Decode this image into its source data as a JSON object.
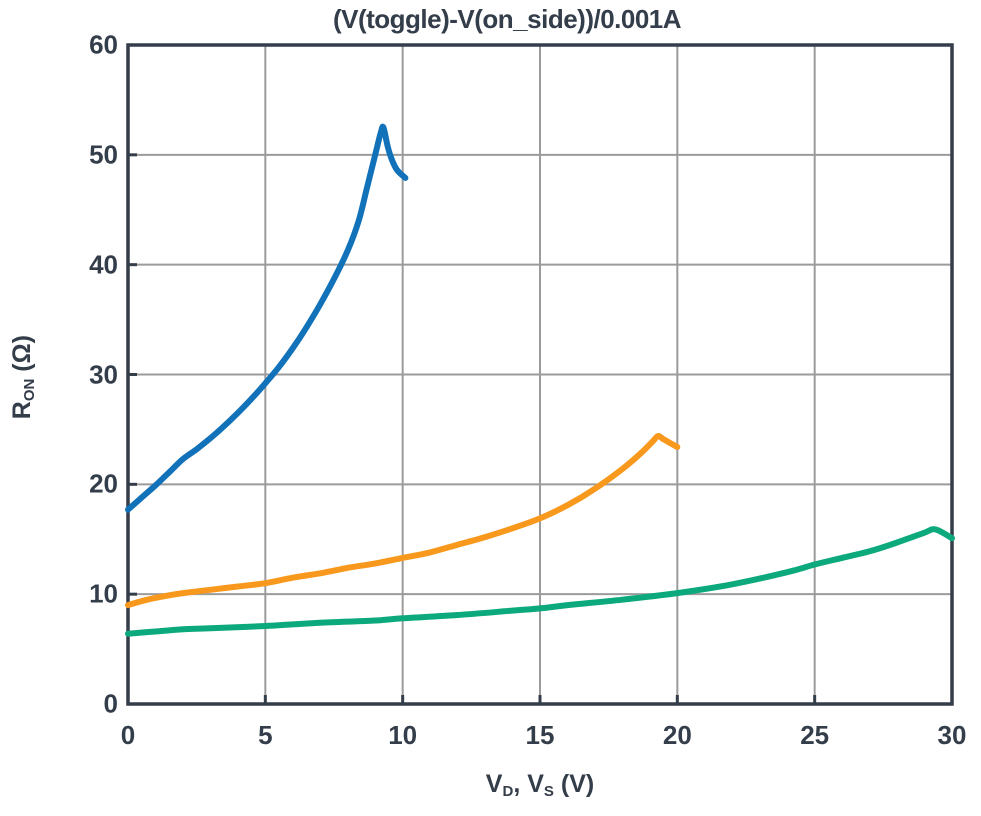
{
  "chart_data": {
    "type": "line",
    "title": "(V(toggle)-V(on_side))/0.001A",
    "xlabel": "V_D, V_S (V)",
    "ylabel": "R_ON (Ω)",
    "xlabel_parts": [
      {
        "text": "V"
      },
      {
        "text": "D",
        "sub": true
      },
      {
        "text": ", V"
      },
      {
        "text": "S",
        "sub": true
      },
      {
        "text": " (V)"
      }
    ],
    "ylabel_parts": [
      {
        "text": "R"
      },
      {
        "text": "ON",
        "sub": true
      },
      {
        "text": " (Ω)"
      }
    ],
    "xlim": [
      0,
      30
    ],
    "ylim": [
      0,
      60
    ],
    "xticks": [
      0,
      5,
      10,
      15,
      20,
      25,
      30
    ],
    "yticks": [
      0,
      10,
      20,
      30,
      40,
      50,
      60
    ],
    "xtick_labels": [
      "0",
      "5",
      "10",
      "15",
      "20",
      "25",
      "30"
    ],
    "ytick_labels": [
      "0",
      "10",
      "20",
      "30",
      "40",
      "50",
      "60"
    ],
    "grid": true,
    "legend": "none",
    "series": [
      {
        "name": "blue-curve",
        "color": "#1272B9",
        "points": [
          [
            0,
            17.7
          ],
          [
            0.5,
            18.8
          ],
          [
            1,
            19.9
          ],
          [
            1.5,
            21.1
          ],
          [
            2,
            22.3
          ],
          [
            2.5,
            23.2
          ],
          [
            3,
            24.2
          ],
          [
            3.5,
            25.3
          ],
          [
            4,
            26.5
          ],
          [
            4.5,
            27.8
          ],
          [
            5,
            29.2
          ],
          [
            5.5,
            30.7
          ],
          [
            6,
            32.4
          ],
          [
            6.5,
            34.3
          ],
          [
            7,
            36.4
          ],
          [
            7.5,
            38.7
          ],
          [
            8,
            41.3
          ],
          [
            8.4,
            44.0
          ],
          [
            8.7,
            47.0
          ],
          [
            9.0,
            50.0
          ],
          [
            9.2,
            52.0
          ],
          [
            9.3,
            52.5
          ],
          [
            9.45,
            50.8
          ],
          [
            9.6,
            49.6
          ],
          [
            9.8,
            48.6
          ],
          [
            10.1,
            47.9
          ]
        ]
      },
      {
        "name": "orange-curve",
        "color": "#F8991D",
        "points": [
          [
            0,
            9.0
          ],
          [
            0.7,
            9.5
          ],
          [
            1.5,
            9.9
          ],
          [
            2,
            10.1
          ],
          [
            3,
            10.4
          ],
          [
            4,
            10.7
          ],
          [
            5,
            11.0
          ],
          [
            6,
            11.5
          ],
          [
            7,
            11.9
          ],
          [
            8,
            12.4
          ],
          [
            9,
            12.8
          ],
          [
            10,
            13.3
          ],
          [
            11,
            13.8
          ],
          [
            12,
            14.5
          ],
          [
            13,
            15.2
          ],
          [
            14,
            16.0
          ],
          [
            15,
            16.9
          ],
          [
            16,
            18.1
          ],
          [
            17,
            19.6
          ],
          [
            18,
            21.4
          ],
          [
            18.7,
            22.9
          ],
          [
            19.1,
            23.9
          ],
          [
            19.3,
            24.4
          ],
          [
            19.5,
            24.1
          ],
          [
            20,
            23.4
          ]
        ]
      },
      {
        "name": "green-curve",
        "color": "#0CA97D",
        "points": [
          [
            0,
            6.4
          ],
          [
            1,
            6.6
          ],
          [
            2,
            6.8
          ],
          [
            3,
            6.9
          ],
          [
            5,
            7.1
          ],
          [
            7,
            7.4
          ],
          [
            9,
            7.6
          ],
          [
            10,
            7.8
          ],
          [
            12,
            8.1
          ],
          [
            14,
            8.5
          ],
          [
            15,
            8.7
          ],
          [
            16,
            9.0
          ],
          [
            18,
            9.5
          ],
          [
            20,
            10.1
          ],
          [
            22,
            10.9
          ],
          [
            24,
            12.0
          ],
          [
            25,
            12.7
          ],
          [
            26,
            13.3
          ],
          [
            27,
            13.9
          ],
          [
            28,
            14.7
          ],
          [
            29,
            15.6
          ],
          [
            29.4,
            15.9
          ],
          [
            30,
            15.1
          ]
        ]
      }
    ]
  },
  "style": {
    "frame_color": "#343D4A",
    "grid_color": "#9B9B9B",
    "text_color": "#343D4A",
    "background": "#FFFFFF"
  }
}
